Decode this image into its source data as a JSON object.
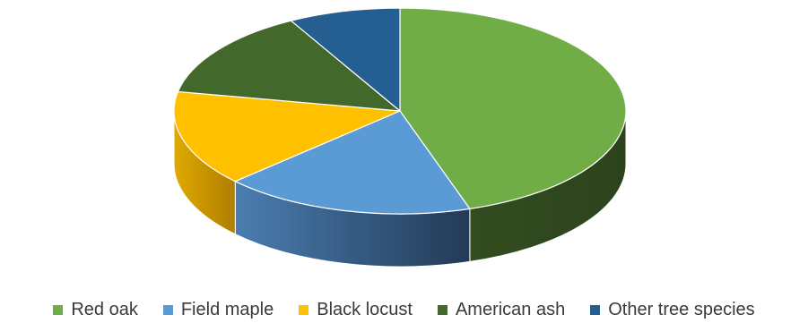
{
  "chart_data": {
    "type": "pie",
    "style": "3d",
    "legend_position": "bottom",
    "categories": [
      "Red oak",
      "Field maple",
      "Black locust",
      "American ash",
      "Other tree species"
    ],
    "values": [
      45,
      18,
      15,
      14,
      8
    ],
    "colors": [
      "#70ad47",
      "#5b9bd5",
      "#ffc000",
      "#43682b",
      "#255e91"
    ]
  }
}
